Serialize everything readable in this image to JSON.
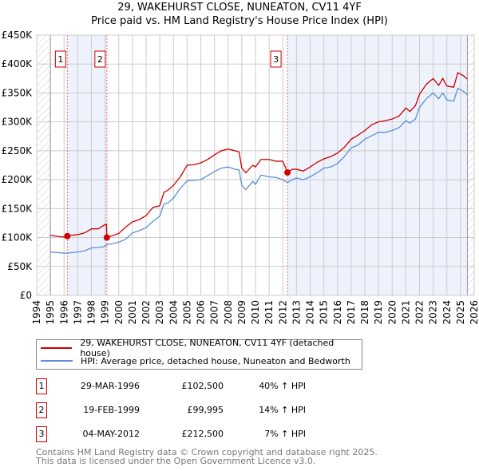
{
  "chart_data": {
    "type": "line",
    "title": "29, WAKEHURST CLOSE, NUNEATON, CV11 4YF",
    "subtitle": "Price paid vs. HM Land Registry's House Price Index (HPI)",
    "xlim": [
      1994,
      2026
    ],
    "ylim": [
      0,
      450000
    ],
    "x_ticks": [
      "1994",
      "1995",
      "1996",
      "1997",
      "1998",
      "1999",
      "2000",
      "2001",
      "2002",
      "2003",
      "2004",
      "2005",
      "2006",
      "2007",
      "2008",
      "2009",
      "2010",
      "2011",
      "2012",
      "2013",
      "2014",
      "2015",
      "2016",
      "2017",
      "2018",
      "2019",
      "2020",
      "2021",
      "2022",
      "2023",
      "2024",
      "2025",
      "2026"
    ],
    "y_ticks": [
      {
        "v": 0,
        "label": "£0"
      },
      {
        "v": 50000,
        "label": "£50K"
      },
      {
        "v": 100000,
        "label": "£100K"
      },
      {
        "v": 150000,
        "label": "£150K"
      },
      {
        "v": 200000,
        "label": "£200K"
      },
      {
        "v": 250000,
        "label": "£250K"
      },
      {
        "v": 300000,
        "label": "£300K"
      },
      {
        "v": 350000,
        "label": "£350K"
      },
      {
        "v": 400000,
        "label": "£400K"
      },
      {
        "v": 450000,
        "label": "£450K"
      }
    ],
    "grid": true,
    "series": [
      {
        "name": "29, WAKEHURST CLOSE, NUNEATON, CV11 4YF (detached house)",
        "color": "#cc0000",
        "x": [
          1995,
          1995.5,
          1996,
          1996.25,
          1996.6,
          1997,
          1997.5,
          1998,
          1998.5,
          1998.9,
          1999.1,
          1999.13,
          1999.5,
          2000,
          2000.5,
          2001,
          2001.5,
          2002,
          2002.5,
          2003,
          2003.3,
          2003.6,
          2004,
          2004.5,
          2005,
          2005.5,
          2006,
          2006.5,
          2007,
          2007.5,
          2008,
          2008.5,
          2008.8,
          2009,
          2009.3,
          2009.8,
          2010,
          2010.4,
          2011,
          2011.5,
          2012,
          2012.34,
          2012.7,
          2013,
          2013.5,
          2014,
          2014.5,
          2015,
          2015.5,
          2016,
          2016.5,
          2017,
          2017.5,
          2018,
          2018.5,
          2019,
          2019.5,
          2020,
          2020.5,
          2021,
          2021.3,
          2021.7,
          2022,
          2022.5,
          2023,
          2023.4,
          2023.7,
          2024,
          2024.5,
          2024.8,
          2025.2,
          2025.5
        ],
        "y": [
          104000,
          102000,
          101000,
          102500,
          104000,
          105000,
          108000,
          115000,
          115000,
          121000,
          123000,
          100000,
          103000,
          107000,
          118000,
          127000,
          131000,
          138000,
          152000,
          155000,
          178000,
          182000,
          190000,
          205000,
          225000,
          226000,
          229000,
          235000,
          243000,
          250000,
          253000,
          250000,
          248000,
          220000,
          212000,
          225000,
          222000,
          235000,
          235000,
          232000,
          232000,
          212500,
          218000,
          218000,
          215000,
          222000,
          230000,
          236000,
          240000,
          246000,
          256000,
          270000,
          277000,
          285000,
          295000,
          300000,
          302000,
          305000,
          310000,
          324000,
          318000,
          328000,
          348000,
          365000,
          375000,
          363000,
          375000,
          362000,
          360000,
          385000,
          380000,
          374000
        ]
      },
      {
        "name": "HPI: Average price, detached house, Nuneaton and Bedworth",
        "color": "#5b8fd6",
        "x": [
          1995,
          1995.5,
          1996,
          1996.25,
          1996.6,
          1997,
          1997.5,
          1998,
          1998.5,
          1998.9,
          1999.1,
          1999.13,
          1999.5,
          2000,
          2000.5,
          2001,
          2001.5,
          2002,
          2002.5,
          2003,
          2003.3,
          2003.6,
          2004,
          2004.5,
          2005,
          2005.5,
          2006,
          2006.5,
          2007,
          2007.5,
          2008,
          2008.5,
          2008.8,
          2009,
          2009.3,
          2009.8,
          2010,
          2010.4,
          2011,
          2011.5,
          2012,
          2012.34,
          2012.7,
          2013,
          2013.5,
          2014,
          2014.5,
          2015,
          2015.5,
          2016,
          2016.5,
          2017,
          2017.5,
          2018,
          2018.5,
          2019,
          2019.5,
          2020,
          2020.5,
          2021,
          2021.3,
          2021.7,
          2022,
          2022.5,
          2023,
          2023.4,
          2023.7,
          2024,
          2024.5,
          2024.8,
          2025.2,
          2025.5
        ],
        "y": [
          75000,
          74000,
          73000,
          73000,
          74000,
          75000,
          77000,
          82000,
          83000,
          84000,
          87000,
          88000,
          89000,
          92000,
          97000,
          108000,
          112000,
          117000,
          128000,
          137000,
          158000,
          160000,
          168000,
          185000,
          198000,
          199000,
          200000,
          207000,
          214000,
          220000,
          222000,
          218000,
          217000,
          190000,
          183000,
          197000,
          192000,
          208000,
          205000,
          204000,
          200000,
          195000,
          200000,
          203000,
          200000,
          205000,
          212000,
          220000,
          222000,
          228000,
          240000,
          255000,
          260000,
          270000,
          276000,
          282000,
          282000,
          285000,
          290000,
          302000,
          298000,
          305000,
          325000,
          340000,
          350000,
          340000,
          350000,
          338000,
          336000,
          358000,
          353000,
          347000
        ]
      }
    ],
    "sales": [
      {
        "id": "1",
        "x": 1996.24,
        "price": 102500,
        "date": "29-MAR-1996",
        "price_label": "£102,500",
        "hpi": "40% ↑ HPI"
      },
      {
        "id": "2",
        "x": 1999.13,
        "price": 99995,
        "date": "19-FEB-1999",
        "price_label": "£99,995",
        "hpi": "14% ↑ HPI"
      },
      {
        "id": "3",
        "x": 2012.34,
        "price": 212500,
        "date": "04-MAY-2012",
        "price_label": "£212,500",
        "hpi": "7% ↑ HPI"
      }
    ],
    "shaded_ranges": [
      [
        1996.24,
        1999.13
      ],
      [
        2012.34,
        2025.5
      ]
    ],
    "hatched_ranges": [
      [
        1994,
        1995
      ],
      [
        2025.5,
        2026
      ]
    ],
    "legend_placement": "below"
  },
  "footer": {
    "line1": "Contains HM Land Registry data © Crown copyright and database right 2025.",
    "line2": "This data is licensed under the Open Government Licence v3.0."
  }
}
